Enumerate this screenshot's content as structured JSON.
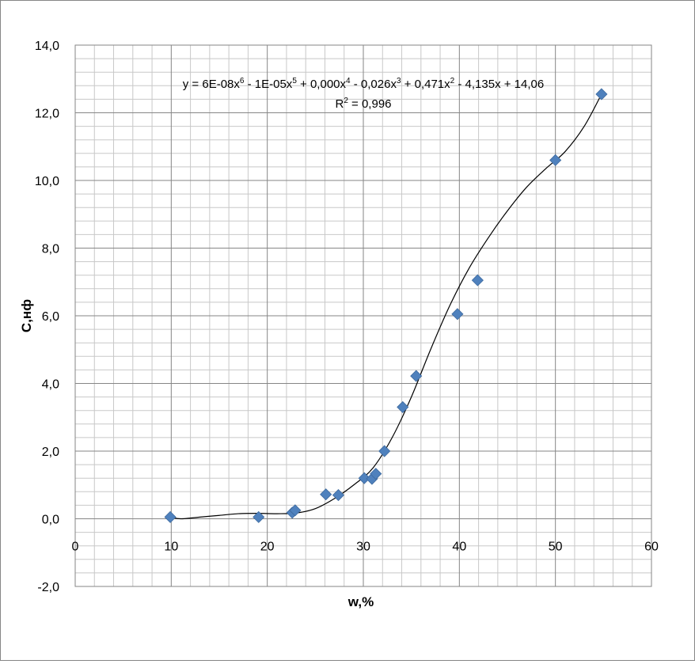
{
  "chart_data": {
    "type": "scatter",
    "title": "",
    "xlabel": "w,%",
    "ylabel": "С,нф",
    "xlim": [
      0,
      60
    ],
    "ylim": [
      -2,
      14
    ],
    "x_ticks": [
      0,
      10,
      20,
      30,
      40,
      50,
      60
    ],
    "y_ticks": [
      -2,
      0,
      2,
      4,
      6,
      8,
      10,
      12,
      14
    ],
    "y_tick_labels": [
      "-2,0",
      "0,0",
      "2,0",
      "4,0",
      "6,0",
      "8,0",
      "10,0",
      "12,0",
      "14,0"
    ],
    "grid": true,
    "marker_color": "#4F81BD",
    "series": [
      {
        "points": [
          [
            9.9,
            0.05
          ],
          [
            19.1,
            0.05
          ],
          [
            22.6,
            0.18
          ],
          [
            22.9,
            0.25
          ],
          [
            26.1,
            0.72
          ],
          [
            27.4,
            0.7
          ],
          [
            30.1,
            1.2
          ],
          [
            30.9,
            1.18
          ],
          [
            31.3,
            1.33
          ],
          [
            32.2,
            2.0
          ],
          [
            34.1,
            3.3
          ],
          [
            35.5,
            4.22
          ],
          [
            39.8,
            6.05
          ],
          [
            41.9,
            7.05
          ],
          [
            50.0,
            10.6
          ],
          [
            54.8,
            12.55
          ]
        ]
      }
    ],
    "trendline": {
      "type": "polynomial",
      "order": 6,
      "equation_parts": [
        "y = 6E-08x",
        "6",
        " - 1E-05x",
        "5",
        " + 0,000x",
        "4",
        " - 0,026x",
        "3",
        " + 0,471x",
        "2",
        " - 4,135x + 14,06"
      ],
      "r2_label": "R",
      "r2_sup": "2",
      "r2_value": " = 0,996",
      "curve": [
        [
          9.9,
          0.05
        ],
        [
          11,
          0.0
        ],
        [
          13,
          0.05
        ],
        [
          15,
          0.1
        ],
        [
          17,
          0.15
        ],
        [
          19,
          0.16
        ],
        [
          21,
          0.15
        ],
        [
          23,
          0.17
        ],
        [
          25,
          0.3
        ],
        [
          27,
          0.6
        ],
        [
          29,
          1.0
        ],
        [
          31,
          1.5
        ],
        [
          33,
          2.4
        ],
        [
          35,
          3.6
        ],
        [
          37,
          5.0
        ],
        [
          39,
          6.3
        ],
        [
          41,
          7.4
        ],
        [
          43,
          8.3
        ],
        [
          45,
          9.1
        ],
        [
          47,
          9.8
        ],
        [
          49,
          10.35
        ],
        [
          51,
          10.85
        ],
        [
          53,
          11.6
        ],
        [
          54.8,
          12.55
        ]
      ]
    }
  }
}
